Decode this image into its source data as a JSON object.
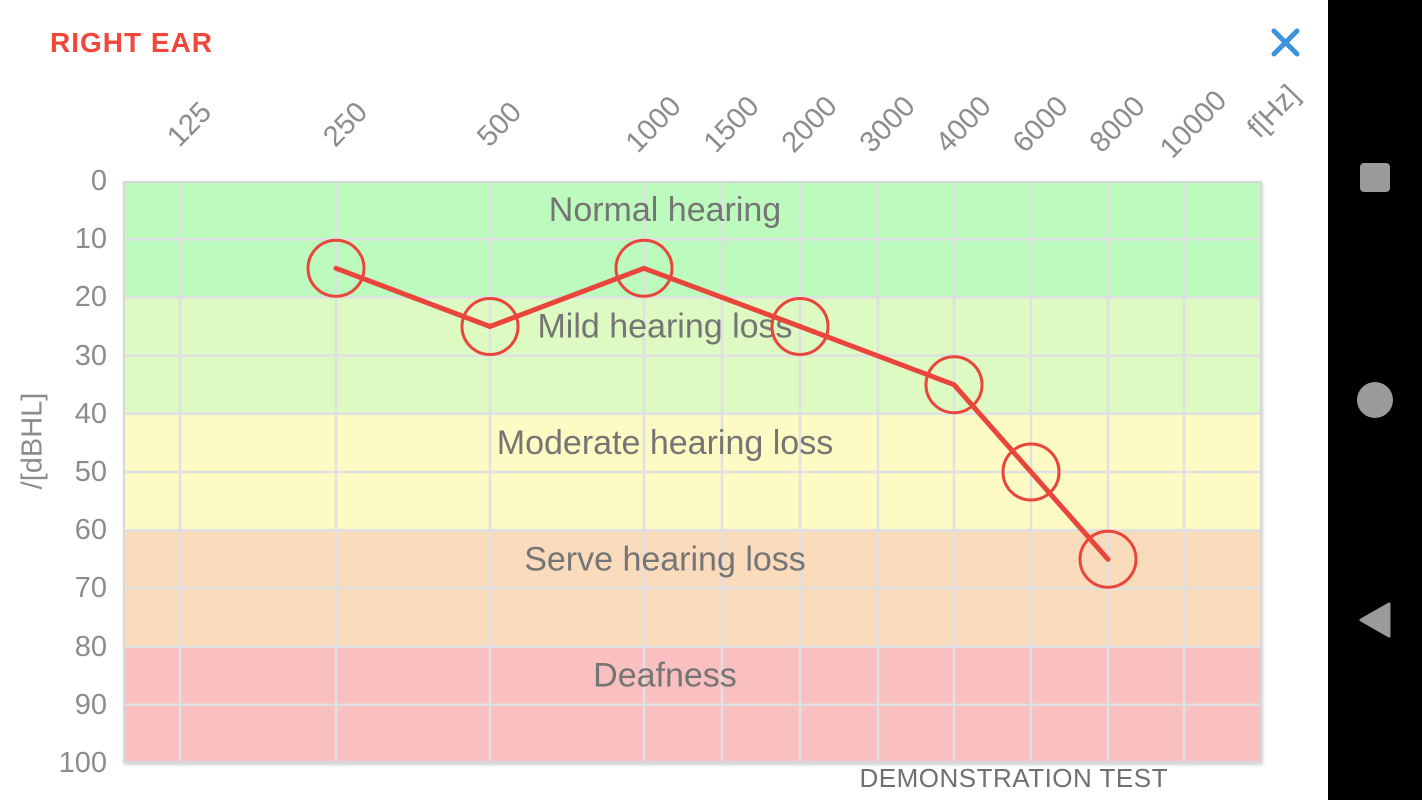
{
  "header": {
    "title": "RIGHT EAR",
    "title_color": "#F2463B",
    "close_icon_color": "#3E92D8"
  },
  "footer": {
    "note": "DEMONSTRATION TEST"
  },
  "navbar": {
    "background": "#000000",
    "icon_color": "#9A9A9A",
    "buttons": [
      {
        "name": "recents",
        "icon": "square-icon"
      },
      {
        "name": "home",
        "icon": "circle-icon"
      },
      {
        "name": "back",
        "icon": "triangle-left-icon"
      }
    ]
  },
  "chart_data": {
    "type": "line",
    "title": "",
    "xlabel": "f[Hz]",
    "ylabel": "/[dBHL]",
    "ylim": [
      0,
      100
    ],
    "y_tick_step": 10,
    "grid": true,
    "grid_color": "#DEE0E2",
    "border_color": "#D7D8DA",
    "y_tick_labels": [
      "0",
      "10",
      "20",
      "30",
      "40",
      "50",
      "60",
      "70",
      "80",
      "90",
      "100"
    ],
    "x_ticks": [
      {
        "label": "125",
        "x": 57
      },
      {
        "label": "250",
        "x": 213
      },
      {
        "label": "500",
        "x": 367
      },
      {
        "label": "1000",
        "x": 521
      },
      {
        "label": "1500",
        "x": 599
      },
      {
        "label": "2000",
        "x": 677
      },
      {
        "label": "3000",
        "x": 755
      },
      {
        "label": "4000",
        "x": 831
      },
      {
        "label": "6000",
        "x": 908
      },
      {
        "label": "8000",
        "x": 985
      },
      {
        "label": "10000",
        "x": 1061
      }
    ],
    "zones": [
      {
        "label": "Normal hearing",
        "from": 0,
        "to": 20,
        "color": "#BDFABD"
      },
      {
        "label": "Mild hearing loss",
        "from": 20,
        "to": 40,
        "color": "#DDFAC2"
      },
      {
        "label": "Moderate hearing loss",
        "from": 40,
        "to": 60,
        "color": "#FDFAC3"
      },
      {
        "label": "Serve hearing loss",
        "from": 60,
        "to": 80,
        "color": "#FADCBC"
      },
      {
        "label": "Deafness",
        "from": 80,
        "to": 100,
        "color": "#FAC0C0"
      }
    ],
    "zone_label_color": "#757575",
    "series": [
      {
        "name": "right-ear-thresholds",
        "color": "#E9453B",
        "marker": "circle",
        "points": [
          {
            "f": 250,
            "db": 15
          },
          {
            "f": 500,
            "db": 25
          },
          {
            "f": 1000,
            "db": 15
          },
          {
            "f": 2000,
            "db": 25
          },
          {
            "f": 4000,
            "db": 35
          },
          {
            "f": 6000,
            "db": 50
          },
          {
            "f": 8000,
            "db": 65
          }
        ]
      }
    ]
  }
}
